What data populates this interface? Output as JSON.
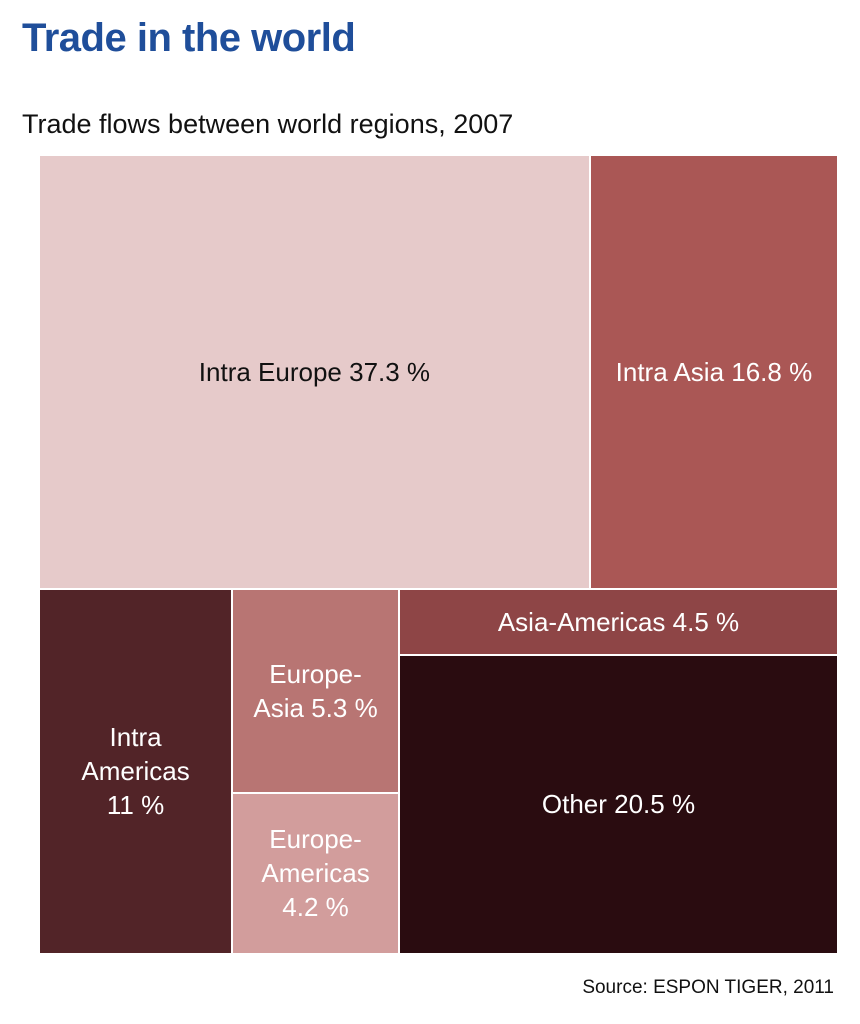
{
  "header": {
    "title": "Trade in the world",
    "subtitle": "Trade flows between world regions, 2007"
  },
  "footer": {
    "source": "Source: ESPON TIGER, 2011"
  },
  "chart_data": {
    "type": "treemap",
    "title": "Trade in the world",
    "subtitle": "Trade flows between world regions, 2007",
    "unit": "%",
    "items": [
      {
        "label": "Intra Europe 37.3 %",
        "value": 37.3,
        "color": "#e6caca",
        "text_color": "#111111"
      },
      {
        "label": "Intra Asia 16.8 %",
        "value": 16.8,
        "color": "#aa5755",
        "text_color": "#ffffff"
      },
      {
        "label": "Intra\nAmericas\n11 %",
        "value": 11,
        "color": "#522428",
        "text_color": "#ffffff"
      },
      {
        "label": "Europe-\nAsia 5.3 %",
        "value": 5.3,
        "color": "#b87573",
        "text_color": "#ffffff"
      },
      {
        "label": "Europe-\nAmericas\n4.2 %",
        "value": 4.2,
        "color": "#d29d9c",
        "text_color": "#ffffff"
      },
      {
        "label": "Asia-Americas 4.5 %",
        "value": 4.5,
        "color": "#8e4546",
        "text_color": "#ffffff"
      },
      {
        "label": "Other 20.5 %",
        "value": 20.5,
        "color": "#2a0c10",
        "text_color": "#ffffff"
      }
    ]
  }
}
